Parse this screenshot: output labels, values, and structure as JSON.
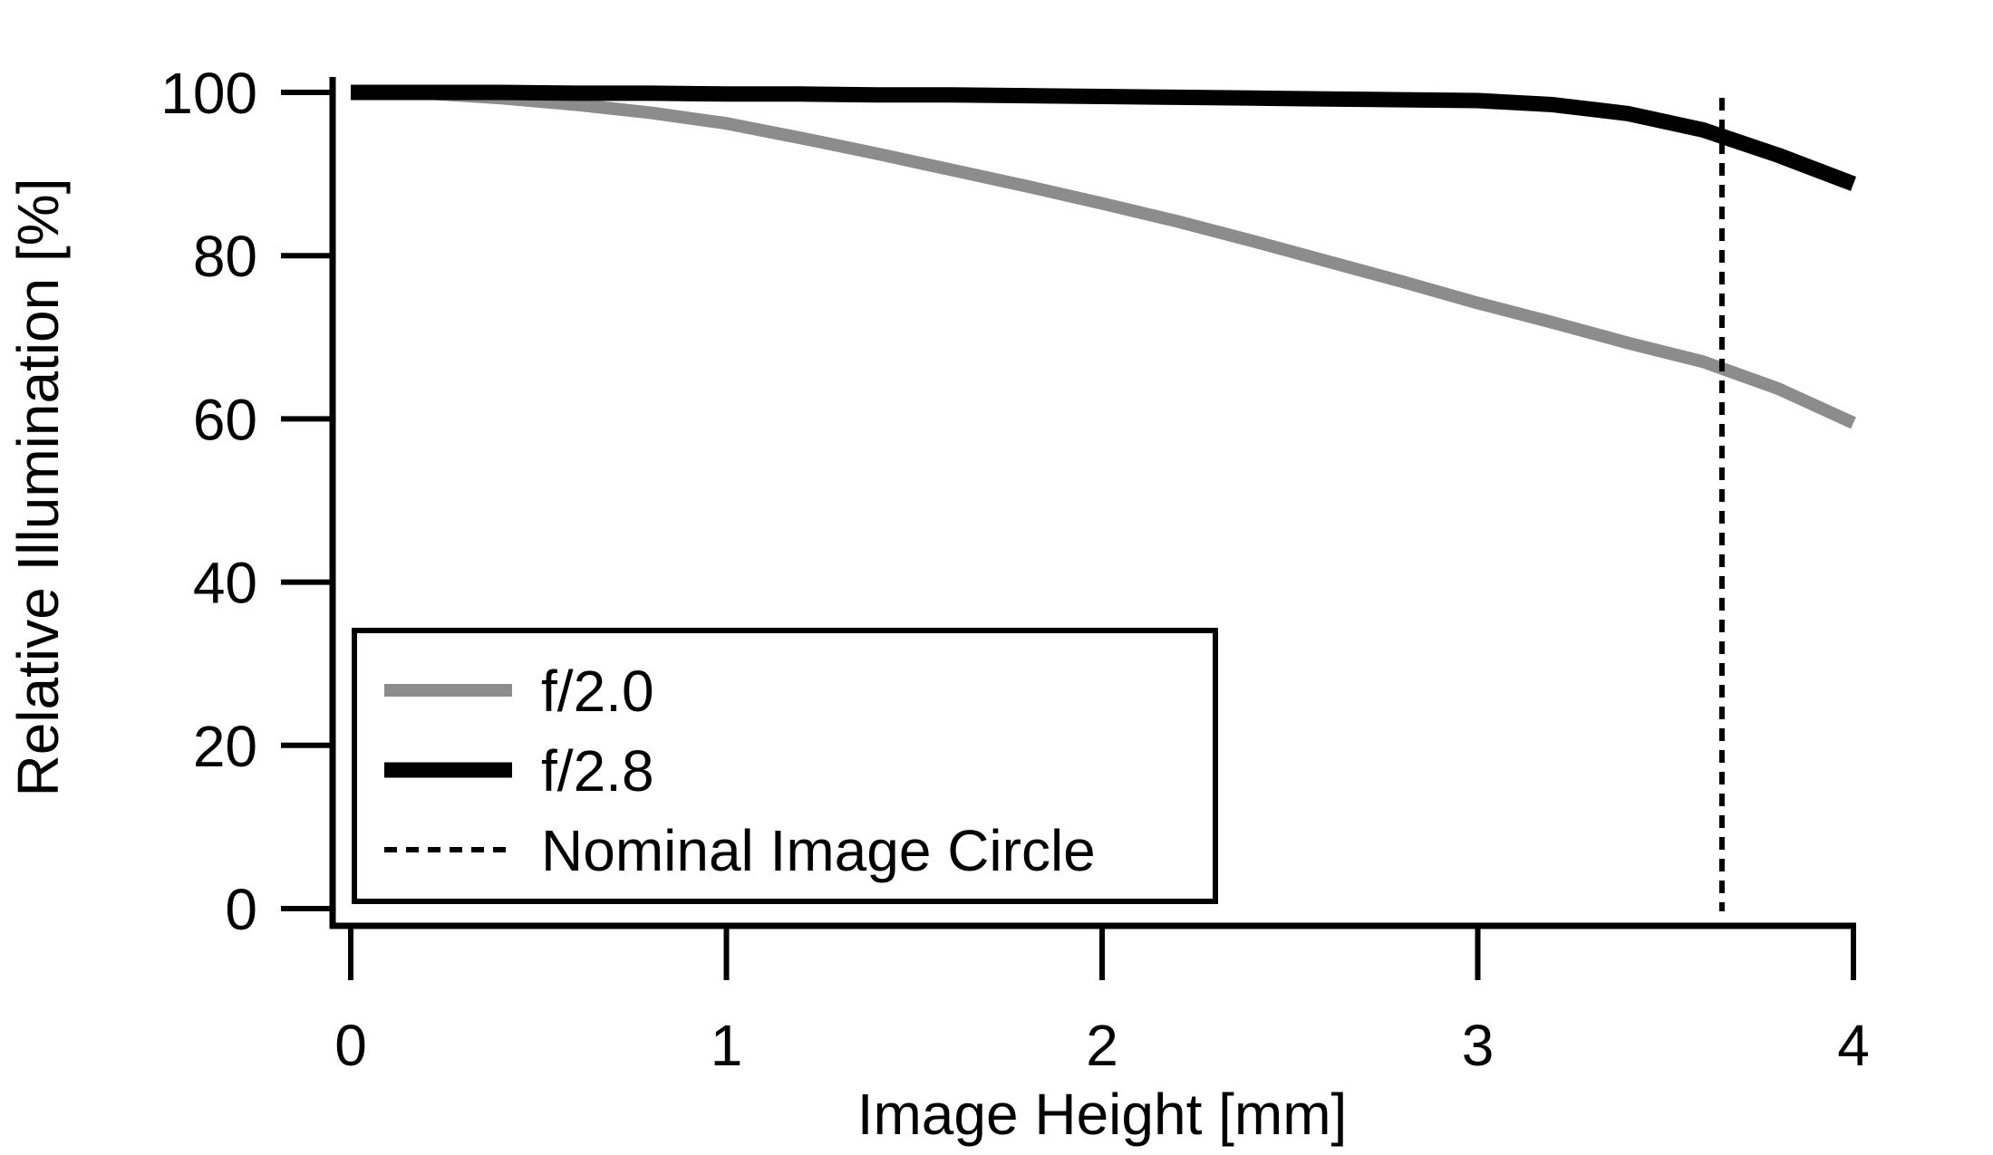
{
  "chart_data": {
    "type": "line",
    "xlabel": "Image Height [mm]",
    "ylabel": "Relative Illumination [%]",
    "x": [
      0,
      0.2,
      0.4,
      0.6,
      0.8,
      1.0,
      1.2,
      1.4,
      1.6,
      1.8,
      2.0,
      2.2,
      2.4,
      2.6,
      2.8,
      3.0,
      3.2,
      3.4,
      3.6,
      3.8,
      4.0
    ],
    "series": [
      {
        "name": "f/2.0",
        "color": "#8c8c8c",
        "values": [
          100,
          99.9,
          99.3,
          98.5,
          97.5,
          96.2,
          94.4,
          92.5,
          90.5,
          88.5,
          86.4,
          84.2,
          81.8,
          79.3,
          76.8,
          74.2,
          71.8,
          69.3,
          67,
          63.7,
          59.5
        ]
      },
      {
        "name": "f/2.8",
        "color": "#000000",
        "values": [
          100,
          100,
          100,
          99.9,
          99.9,
          99.8,
          99.8,
          99.7,
          99.7,
          99.6,
          99.5,
          99.4,
          99.3,
          99.2,
          99.1,
          99,
          98.5,
          97.4,
          95.4,
          92.3,
          88.8
        ]
      }
    ],
    "reference_line": {
      "x": 3.65,
      "label": "Nominal Image Circle",
      "color": "#000000"
    },
    "xlim": [
      0,
      4
    ],
    "xticks": [
      0,
      1,
      2,
      3,
      4
    ],
    "ylim": [
      0,
      100
    ],
    "yticks": [
      0,
      20,
      40,
      60,
      80,
      100
    ],
    "grid": false,
    "legend": "lower left"
  }
}
